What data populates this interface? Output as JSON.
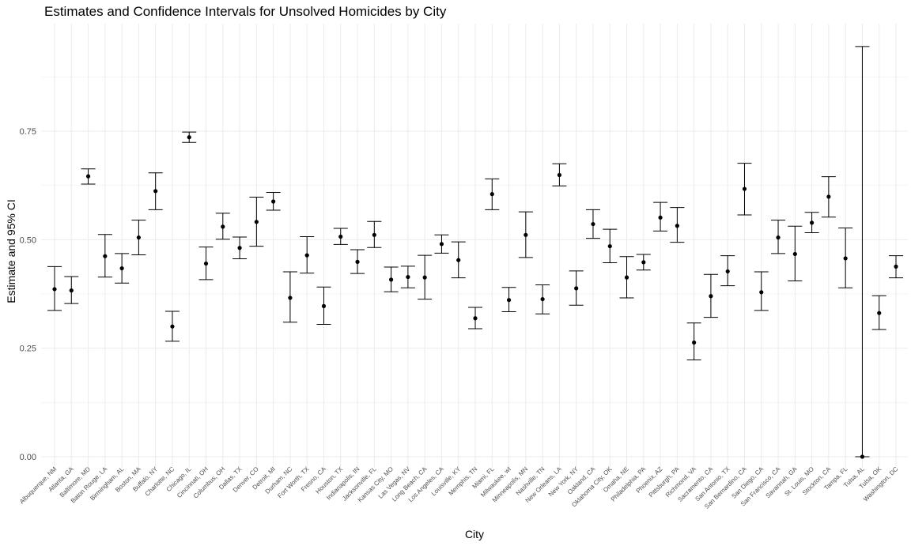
{
  "chart_data": {
    "type": "scatter",
    "subtype": "point-with-errorbars",
    "title": "Estimates and Confidence Intervals for Unsolved Homicides by City",
    "xlabel": "City",
    "ylabel": "Estimate and 95% CI",
    "ylim": [
      0,
      0.95
    ],
    "yticks": [
      0.0,
      0.25,
      0.5,
      0.75
    ],
    "ytick_labels": [
      "0.00",
      "0.25",
      "0.50",
      "0.75"
    ],
    "grid": true,
    "legend": "none",
    "colors": {
      "point": "#000000",
      "errorbar": "#000000",
      "grid_major": "#ebebeb",
      "grid_minor": "#f4f4f4",
      "background": "#ffffff"
    },
    "categories": [
      "Albuquerque, NM",
      "Atlanta, GA",
      "Baltimore, MD",
      "Baton Rouge, LA",
      "Birmingham, AL",
      "Boston, MA",
      "Buffalo, NY",
      "Charlotte, NC",
      "Chicago, IL",
      "Cincinnati, OH",
      "Columbus, OH",
      "Dallas, TX",
      "Denver, CO",
      "Detroit, MI",
      "Durham, NC",
      "Fort Worth, TX",
      "Fresno, CA",
      "Houston, TX",
      "Indianapolis, IN",
      "Jacksonville, FL",
      "Kansas City, MO",
      "Las Vegas, NV",
      "Long Beach, CA",
      "Los Angeles, CA",
      "Louisville, KY",
      "Memphis, TN",
      "Miami, FL",
      "Milwaukee, wI",
      "Minneapolis, MN",
      "Nashville, TN",
      "New Orleans, LA",
      "New York, NY",
      "Oakland, CA",
      "Oklahoma City, OK",
      "Omaha, NE",
      "Philadelphia, PA",
      "Phoenix, AZ",
      "Pittsburgh, PA",
      "Richmond, VA",
      "Sacramento, CA",
      "San Antonio, TX",
      "San Bernardino, CA",
      "San Diego, CA",
      "San Francisco, CA",
      "Savannah, GA",
      "St. Louis, MO",
      "Stockton, CA",
      "Tampa, FL",
      "Tulsa, AL",
      "Tulsa, OK",
      "Washington, DC"
    ],
    "estimate": [
      0.386,
      0.383,
      0.646,
      0.462,
      0.434,
      0.505,
      0.612,
      0.3,
      0.736,
      0.445,
      0.53,
      0.481,
      0.541,
      0.588,
      0.366,
      0.464,
      0.347,
      0.507,
      0.449,
      0.511,
      0.408,
      0.414,
      0.413,
      0.49,
      0.453,
      0.319,
      0.605,
      0.361,
      0.511,
      0.363,
      0.649,
      0.388,
      0.536,
      0.485,
      0.413,
      0.448,
      0.551,
      0.532,
      0.263,
      0.37,
      0.427,
      0.617,
      0.379,
      0.505,
      0.467,
      0.539,
      0.599,
      0.457,
      0.0,
      0.331,
      0.438
    ],
    "lower": [
      0.337,
      0.353,
      0.628,
      0.414,
      0.4,
      0.465,
      0.569,
      0.266,
      0.724,
      0.408,
      0.501,
      0.456,
      0.485,
      0.568,
      0.31,
      0.423,
      0.305,
      0.489,
      0.422,
      0.482,
      0.38,
      0.389,
      0.363,
      0.469,
      0.412,
      0.295,
      0.569,
      0.334,
      0.459,
      0.329,
      0.624,
      0.349,
      0.503,
      0.447,
      0.366,
      0.43,
      0.52,
      0.494,
      0.223,
      0.321,
      0.394,
      0.557,
      0.337,
      0.468,
      0.405,
      0.516,
      0.552,
      0.389,
      0.0,
      0.293,
      0.412
    ],
    "upper": [
      0.438,
      0.415,
      0.663,
      0.512,
      0.468,
      0.545,
      0.654,
      0.335,
      0.748,
      0.483,
      0.561,
      0.506,
      0.598,
      0.609,
      0.426,
      0.507,
      0.391,
      0.526,
      0.477,
      0.542,
      0.437,
      0.439,
      0.464,
      0.511,
      0.495,
      0.344,
      0.64,
      0.39,
      0.564,
      0.396,
      0.675,
      0.428,
      0.569,
      0.524,
      0.461,
      0.466,
      0.586,
      0.574,
      0.308,
      0.42,
      0.463,
      0.676,
      0.426,
      0.545,
      0.531,
      0.563,
      0.645,
      0.527,
      0.945,
      0.371,
      0.463
    ]
  }
}
